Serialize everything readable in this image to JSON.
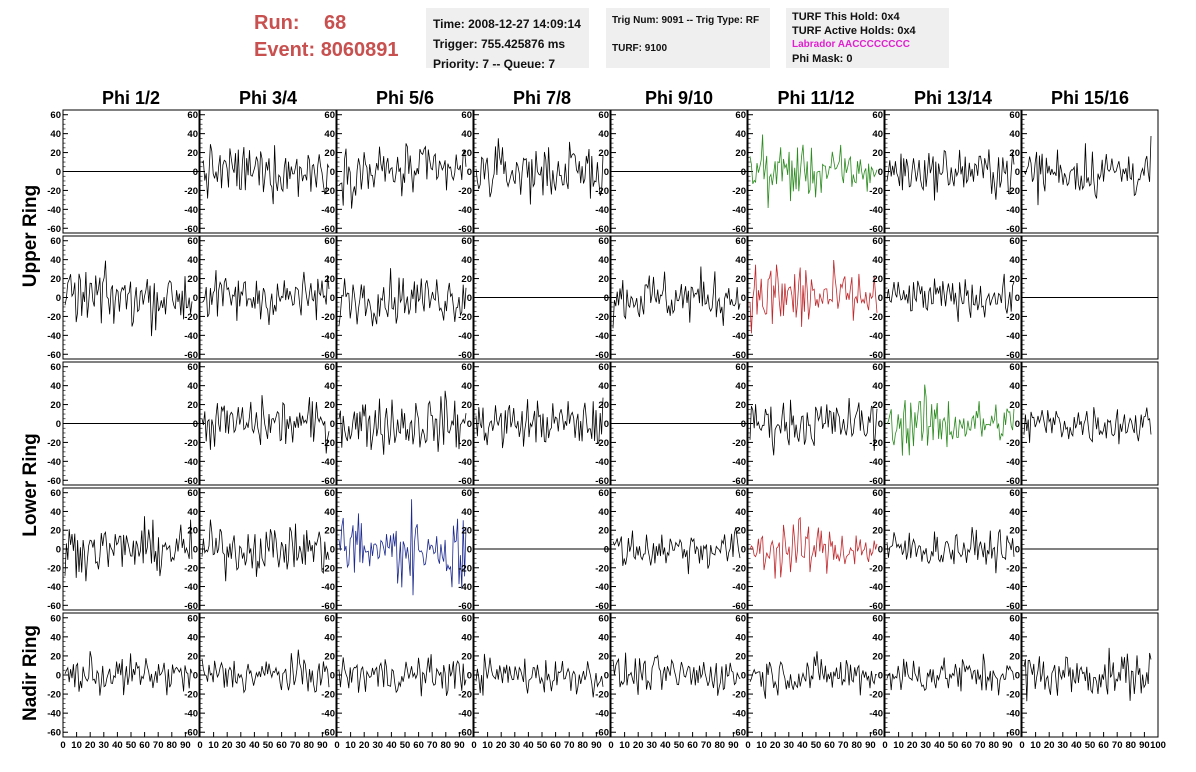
{
  "header": {
    "run_label": "Run:",
    "run_value": "68",
    "event_label": "Event:",
    "event_value": "8060891"
  },
  "info_time": {
    "time": "Time: 2008-12-27 14:09:14",
    "trigger": "Trigger: 755.425876 ms",
    "priority": "Priority: 7 -- Queue: 7"
  },
  "info_trig": {
    "trig": "Trig Num: 9091 -- Trig Type: RF",
    "turf": "TURF: 9100"
  },
  "info_turf": {
    "this_hold": "TURF This Hold: 0x4",
    "active_holds": "TURF Active Holds: 0x4",
    "labrador": "Labrador AACCCCCCCC",
    "phi_mask": "Phi Mask: 0"
  },
  "colors": {
    "header_red": "#c8504f",
    "labrador_magenta": "#e020d0",
    "trace_black": "#000000",
    "trace_green": "#2a8a1e",
    "trace_red": "#c0282c",
    "trace_blue": "#1c2a90"
  },
  "chart_data": {
    "type": "line",
    "columns": [
      "Phi 1/2",
      "Phi 3/4",
      "Phi 5/6",
      "Phi 7/8",
      "Phi 9/10",
      "Phi 11/12",
      "Phi 13/14",
      "Phi 15/16"
    ],
    "row_labels": [
      "Upper Ring",
      "Lower Ring",
      "Nadir Ring"
    ],
    "ylim": [
      -65,
      65
    ],
    "y_ticks": [
      -60,
      -40,
      -20,
      0,
      20,
      40,
      60
    ],
    "xlim": [
      0,
      100
    ],
    "x_ticks": [
      0,
      10,
      20,
      30,
      40,
      50,
      60,
      70,
      80,
      90,
      100
    ],
    "panel_rows": 5,
    "waveform_samples": 92,
    "traces": [
      [
        "flat",
        "noise",
        "noise",
        "noise",
        "flat",
        "noise-green",
        "noise",
        "noise"
      ],
      [
        "noise",
        "noise",
        "noise",
        "flat",
        "noise",
        "noise-red",
        "noise",
        "flat"
      ],
      [
        "flat",
        "noise",
        "noise",
        "noise",
        "flat",
        "noise",
        "noise-green",
        "noise"
      ],
      [
        "noise",
        "noise",
        "noise-blue",
        "flat",
        "noise",
        "noise-red",
        "noise",
        "flat"
      ],
      [
        "noise",
        "noise",
        "noise",
        "noise",
        "noise",
        "noise",
        "noise",
        "noise"
      ]
    ],
    "amplitudes": [
      [
        0,
        14,
        14,
        14,
        0,
        13,
        12,
        14
      ],
      [
        15,
        13,
        13,
        0,
        14,
        16,
        10,
        0
      ],
      [
        0,
        13,
        15,
        13,
        0,
        13,
        13,
        11
      ],
      [
        13,
        13,
        18,
        0,
        11,
        12,
        10,
        0
      ],
      [
        10,
        10,
        10,
        10,
        10,
        10,
        10,
        12
      ]
    ]
  }
}
